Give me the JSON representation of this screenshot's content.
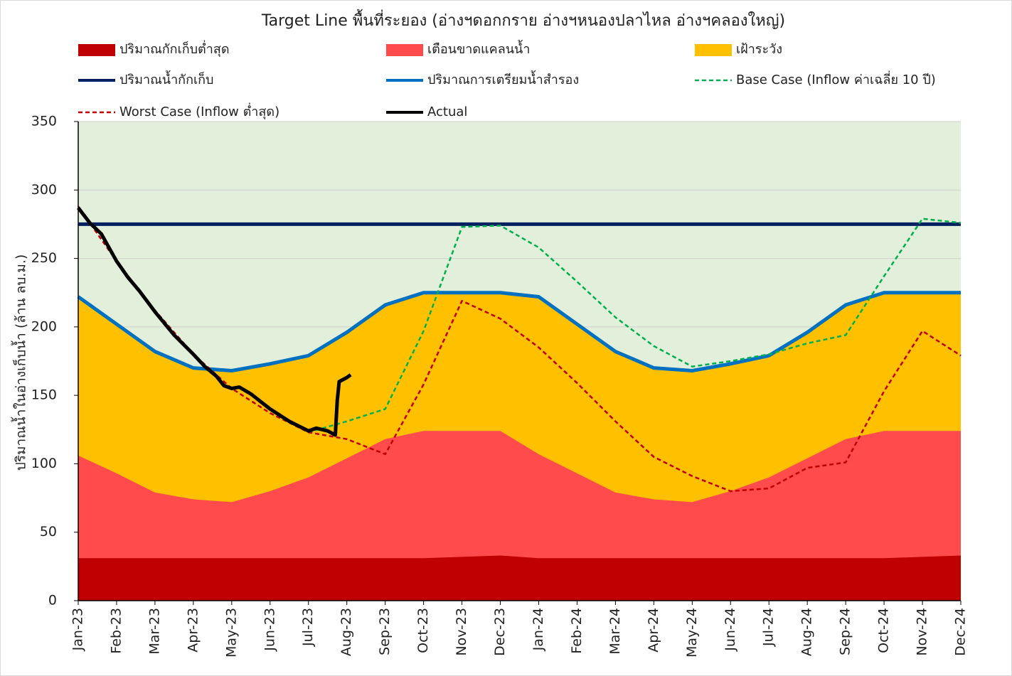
{
  "chart_data": {
    "type": "area-line",
    "title": "Target Line พื้นที่ระยอง (อ่างฯดอกกราย อ่างฯหนองปลาไหล อ่างฯคลองใหญ่)",
    "y_label": "ปริมาณน้ำในอ่างเก็บน้ำ (ล้าน ลบ.ม.)",
    "categories": [
      "Jan-23",
      "Feb-23",
      "Mar-23",
      "Apr-23",
      "May-23",
      "Jun-23",
      "Jul-23",
      "Aug-23",
      "Sep-23",
      "Oct-23",
      "Nov-23",
      "Dec-23",
      "Jan-24",
      "Feb-24",
      "Mar-24",
      "Apr-24",
      "May-24",
      "Jun-24",
      "Jul-24",
      "Aug-24",
      "Sep-24",
      "Oct-24",
      "Nov-24",
      "Dec-24"
    ],
    "ylim": [
      0,
      350
    ],
    "yticks": [
      0,
      50,
      100,
      150,
      200,
      250,
      300,
      350
    ],
    "grid": true,
    "series": [
      {
        "name": "เฝ้าระวัง",
        "type": "area",
        "color": "#ffc000",
        "values": [
          222,
          202,
          182,
          170,
          168,
          173,
          179,
          196,
          216,
          225,
          225,
          225,
          222,
          202,
          182,
          170,
          168,
          173,
          179,
          196,
          216,
          225,
          225,
          225
        ]
      },
      {
        "name": "เตือนขาดแคลนน้ำ",
        "type": "area",
        "color": "#ff4b4b",
        "values": [
          106,
          93,
          79,
          74,
          72,
          80,
          90,
          104,
          118,
          124,
          124,
          124,
          107,
          93,
          79,
          74,
          72,
          80,
          90,
          104,
          118,
          124,
          124,
          124
        ]
      },
      {
        "name": "ปริมาณกักเก็บต่ำสุด",
        "type": "area",
        "color": "#c00000",
        "values": [
          31,
          31,
          31,
          31,
          31,
          31,
          31,
          31,
          31,
          31,
          32,
          33,
          31,
          31,
          31,
          31,
          31,
          31,
          31,
          31,
          31,
          31,
          32,
          33
        ]
      },
      {
        "name": "ปริมาณน้ำกักเก็บ",
        "type": "line",
        "color": "#002060",
        "width": 5,
        "values": [
          275,
          275,
          275,
          275,
          275,
          275,
          275,
          275,
          275,
          275,
          275,
          275,
          275,
          275,
          275,
          275,
          275,
          275,
          275,
          275,
          275,
          275,
          275,
          275
        ]
      },
      {
        "name": "ปริมาณการเตรียมน้ำสำรอง",
        "type": "line",
        "color": "#0070c0",
        "width": 5,
        "values": [
          222,
          202,
          182,
          170,
          168,
          173,
          179,
          196,
          216,
          225,
          225,
          225,
          222,
          202,
          182,
          170,
          168,
          173,
          179,
          196,
          216,
          225,
          225,
          225
        ]
      },
      {
        "name": "Base Case (Inflow ค่าเฉลี่ย 10 ปี)",
        "type": "line",
        "color": "#00b050",
        "width": 2.5,
        "dashed": true,
        "values": [
          null,
          null,
          null,
          null,
          null,
          null,
          123,
          131,
          140,
          197,
          273,
          274,
          258,
          233,
          207,
          186,
          171,
          175,
          180,
          188,
          194,
          237,
          279,
          276
        ]
      },
      {
        "name": "Worst Case (Inflow ต่ำสุด)",
        "type": "line",
        "color": "#c00000",
        "width": 2.5,
        "dashed": true,
        "values": [
          288,
          248,
          212,
          180,
          155,
          137,
          123,
          118,
          107,
          158,
          219,
          206,
          185,
          159,
          131,
          105,
          91,
          80,
          82,
          97,
          101,
          153,
          197,
          179
        ]
      },
      {
        "name": "Actual",
        "type": "line",
        "color": "#000000",
        "width": 5,
        "x": [
          0,
          0.3,
          0.6,
          1,
          1.3,
          1.6,
          2,
          2.5,
          3,
          3.3,
          3.6,
          3.8,
          4,
          4.2,
          4.5,
          5,
          5.5,
          6,
          6.2,
          6.5,
          6.7,
          6.75,
          6.8,
          7,
          7.1
        ],
        "values": [
          287,
          276,
          268,
          248,
          236,
          226,
          211,
          194,
          180,
          171,
          164,
          157,
          155,
          156,
          151,
          140,
          131,
          124,
          126,
          124,
          121,
          146,
          160,
          163,
          165
        ]
      }
    ],
    "legend_order": [
      2,
      1,
      0,
      3,
      4,
      5,
      6,
      7
    ]
  }
}
